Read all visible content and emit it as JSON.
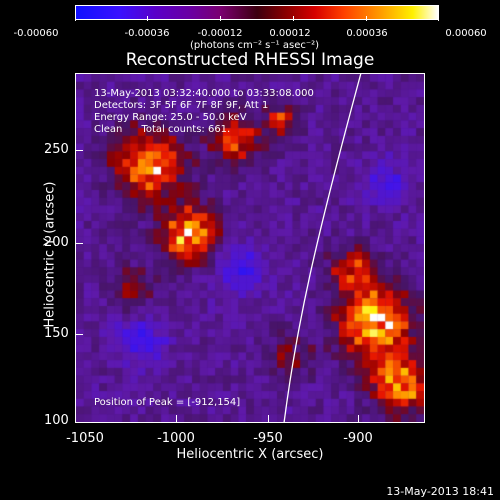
{
  "colorbar": {
    "tick_labels": [
      "-0.00060",
      "-0.00036",
      "-0.00012",
      "0.00012",
      "0.00036",
      "0.00060"
    ],
    "unit": "(photons cm⁻² s⁻¹ asec⁻²)"
  },
  "title": "Reconstructed RHESSI Image",
  "info": {
    "time_range": "13-May-2013 03:32:40.000 to 03:33:08.000",
    "detectors": "Detectors: 3F 5F 6F 7F 8F 9F, Att 1",
    "energy": "Energy Range: 25.0 - 50.0 keV",
    "clean": "Clean      Total counts: 661."
  },
  "peak": "Position of Peak = [-912,154]",
  "axes": {
    "x_label": "Heliocentric X (arcsec)",
    "y_label": "Heliocentric Y (arcsec)",
    "x_ticks": [
      "-1050",
      "-1000",
      "-950",
      "-900"
    ],
    "y_ticks": [
      "250",
      "200",
      "150",
      "100"
    ]
  },
  "timestamp": "13-May-2013 18:41",
  "colors": {
    "background": "#000000",
    "text": "#ffffff",
    "limb": "#ffffff"
  }
}
